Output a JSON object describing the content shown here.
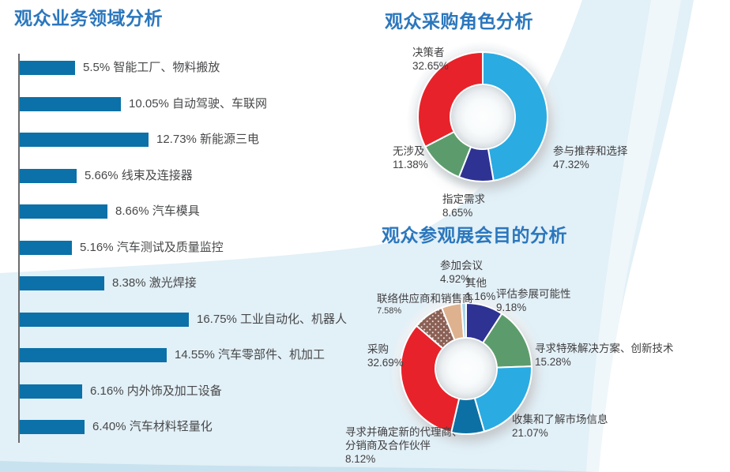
{
  "chart_data": [
    {
      "id": "business-fields",
      "type": "bar",
      "orientation": "horizontal",
      "title": "观众业务领域分析",
      "unit": "%",
      "xlim": [
        0,
        18
      ],
      "bar_color": "#0B71A8",
      "items": [
        {
          "value": 5.5,
          "pct_label": "5.5%",
          "label": "智能工厂、物料搬放"
        },
        {
          "value": 10.05,
          "pct_label": "10.05%",
          "label": "自动驾驶、车联网"
        },
        {
          "value": 12.73,
          "pct_label": "12.73%",
          "label": "新能源三电"
        },
        {
          "value": 5.66,
          "pct_label": "5.66%",
          "label": "线束及连接器"
        },
        {
          "value": 8.66,
          "pct_label": "8.66%",
          "label": "汽车模具"
        },
        {
          "value": 5.16,
          "pct_label": "5.16%",
          "label": "汽车测试及质量监控"
        },
        {
          "value": 8.38,
          "pct_label": "8.38%",
          "label": "激光焊接"
        },
        {
          "value": 16.75,
          "pct_label": "16.75%",
          "label": "工业自动化、机器人"
        },
        {
          "value": 14.55,
          "pct_label": "14.55%",
          "label": "汽车零部件、机加工"
        },
        {
          "value": 6.16,
          "pct_label": "6.16%",
          "label": "内外饰及加工设备"
        },
        {
          "value": 6.4,
          "pct_label": "6.40%",
          "label": "汽车材料轻量化"
        }
      ]
    },
    {
      "id": "purchase-role",
      "type": "donut",
      "title": "观众采购角色分析",
      "start_angle_deg": 0,
      "clockwise": true,
      "segments": [
        {
          "label": "参与推荐和选择",
          "value": 47.32,
          "pct_label": "47.32%",
          "color": "#29ABE2"
        },
        {
          "label": "指定需求",
          "value": 8.65,
          "pct_label": "8.65%",
          "color": "#2E3192"
        },
        {
          "label": "无涉及",
          "value": 11.38,
          "pct_label": "11.38%",
          "color": "#5C9C6C"
        },
        {
          "label": "决策者",
          "value": 32.65,
          "pct_label": "32.65%",
          "color": "#E8242B"
        }
      ]
    },
    {
      "id": "visit-purpose",
      "type": "donut",
      "title": "观众参观展会目的分析",
      "start_angle_deg": 0,
      "clockwise": true,
      "segments": [
        {
          "label": "评估参展可能性",
          "value": 9.18,
          "pct_label": "9.18%",
          "color": "#2E3192"
        },
        {
          "label": "寻求特殊解决方案、创新技术",
          "value": 15.28,
          "pct_label": "15.28%",
          "color": "#5C9C6C"
        },
        {
          "label": "收集和了解市场信息",
          "value": 21.07,
          "pct_label": "21.07%",
          "color": "#29ABE2"
        },
        {
          "label": "寻求并确定新的代理商、分销商及合作伙伴",
          "label_lines": [
            "寻求并确定新的代理商、",
            "分销商及合作伙伴"
          ],
          "value": 8.12,
          "pct_label": "8.12%",
          "color": "#0D6FA5"
        },
        {
          "label": "采购",
          "value": 32.69,
          "pct_label": "32.69%",
          "color": "#E8242B"
        },
        {
          "label": "联络供应商和销售商",
          "value": 7.58,
          "pct_label": "7.58%",
          "color": "#8B6054",
          "pattern": "dots"
        },
        {
          "label": "参加会议",
          "value": 4.92,
          "pct_label": "4.92%",
          "color": "#DEB28E"
        },
        {
          "label": "其他",
          "value": 1.16,
          "pct_label": "1.16%",
          "color": "#A8D4EA"
        }
      ]
    }
  ]
}
